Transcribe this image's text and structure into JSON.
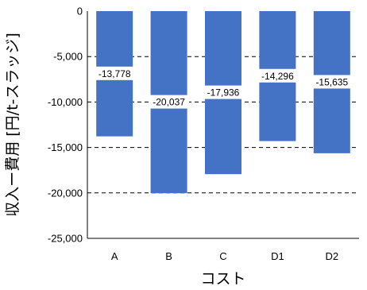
{
  "chart_data": {
    "type": "bar",
    "categories": [
      "A",
      "B",
      "C",
      "D1",
      "D2"
    ],
    "values": [
      -13778,
      -20037,
      -17936,
      -14296,
      -15635
    ],
    "data_labels": [
      "-13,778",
      "-20,037",
      "-17,936",
      "-14,296",
      "-15,635"
    ],
    "ylim": [
      -25000,
      0
    ],
    "yticks": [
      0,
      -5000,
      -10000,
      -15000,
      -20000,
      -25000
    ],
    "ytick_labels": [
      "0",
      "-5,000",
      "-10,000",
      "-15,000",
      "-20,000",
      "-25,000"
    ],
    "xlabel": "コスト",
    "ylabel": "収入ー費用 [円/t-スラッジ]",
    "grid": "horizontal dashed",
    "bar_color": "#4472C4"
  }
}
